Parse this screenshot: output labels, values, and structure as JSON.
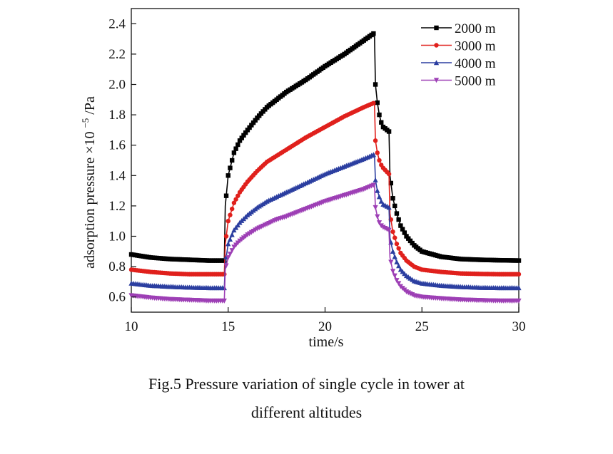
{
  "chart_data": {
    "type": "line",
    "title": "",
    "xlabel": "time/s",
    "ylabel_text": "adsorption pressure",
    "ylabel_mult": "×10",
    "ylabel_exp": "−5",
    "ylabel_unit": "/Pa",
    "xlim": [
      10,
      30
    ],
    "ylim": [
      0.5,
      2.5
    ],
    "xticks": [
      10,
      15,
      20,
      25,
      30
    ],
    "xtick_labels": [
      "10",
      "15",
      "20",
      "25",
      "30"
    ],
    "yticks": [
      0.6,
      0.8,
      1.0,
      1.2,
      1.4,
      1.6,
      1.8,
      2.0,
      2.2,
      2.4
    ],
    "ytick_labels": [
      "0.6",
      "0.8",
      "1.0",
      "1.2",
      "1.4",
      "1.6",
      "1.8",
      "2.0",
      "2.2",
      "2.4"
    ],
    "legend_position": "top-right",
    "series": [
      {
        "name": "2000 m",
        "color": "#000000",
        "marker": "square",
        "x": [
          10,
          11,
          12,
          13,
          14,
          14.8,
          14.85,
          15.0,
          15.3,
          15.6,
          16.0,
          16.5,
          17.0,
          17.5,
          18.0,
          19.0,
          20.0,
          21.0,
          22.0,
          22.55,
          22.6,
          22.7,
          22.8,
          22.9,
          23.0,
          23.3,
          23.35,
          23.5,
          23.7,
          23.9,
          24.2,
          24.6,
          25.0,
          26.0,
          27.0,
          28.0,
          29.0,
          30.0
        ],
        "y": [
          0.88,
          0.86,
          0.85,
          0.845,
          0.84,
          0.84,
          1.2,
          1.4,
          1.55,
          1.63,
          1.7,
          1.78,
          1.85,
          1.9,
          1.95,
          2.03,
          2.12,
          2.2,
          2.29,
          2.34,
          2.0,
          1.88,
          1.8,
          1.75,
          1.72,
          1.69,
          1.4,
          1.25,
          1.15,
          1.07,
          1.0,
          0.94,
          0.9,
          0.865,
          0.85,
          0.845,
          0.842,
          0.84
        ]
      },
      {
        "name": "3000 m",
        "color": "#e0201c",
        "marker": "circle",
        "x": [
          10,
          11,
          12,
          13,
          14,
          14.8,
          14.85,
          15.0,
          15.3,
          15.6,
          16.0,
          16.5,
          17.0,
          17.5,
          18.0,
          19.0,
          20.0,
          21.0,
          22.0,
          22.55,
          22.6,
          22.7,
          22.8,
          22.9,
          23.0,
          23.3,
          23.35,
          23.5,
          23.7,
          23.9,
          24.2,
          24.6,
          25.0,
          26.0,
          27.0,
          28.0,
          29.0,
          30.0
        ],
        "y": [
          0.78,
          0.765,
          0.755,
          0.75,
          0.75,
          0.75,
          0.95,
          1.1,
          1.22,
          1.29,
          1.36,
          1.43,
          1.49,
          1.53,
          1.57,
          1.65,
          1.72,
          1.79,
          1.85,
          1.88,
          1.63,
          1.55,
          1.5,
          1.47,
          1.45,
          1.41,
          1.15,
          1.03,
          0.95,
          0.89,
          0.84,
          0.8,
          0.78,
          0.765,
          0.755,
          0.752,
          0.75,
          0.75
        ]
      },
      {
        "name": "4000 m",
        "color": "#2b3ea0",
        "marker": "triangle-up",
        "x": [
          10,
          11,
          12,
          13,
          14,
          14.8,
          14.85,
          15.0,
          15.3,
          15.6,
          16.0,
          16.5,
          17.0,
          17.5,
          18.0,
          19.0,
          20.0,
          21.0,
          22.0,
          22.55,
          22.6,
          22.7,
          22.8,
          22.9,
          23.0,
          23.3,
          23.35,
          23.5,
          23.7,
          23.9,
          24.2,
          24.6,
          25.0,
          26.0,
          27.0,
          28.0,
          29.0,
          30.0
        ],
        "y": [
          0.69,
          0.675,
          0.668,
          0.663,
          0.66,
          0.66,
          0.82,
          0.95,
          1.04,
          1.09,
          1.14,
          1.19,
          1.23,
          1.26,
          1.29,
          1.35,
          1.41,
          1.46,
          1.51,
          1.54,
          1.37,
          1.3,
          1.26,
          1.23,
          1.21,
          1.19,
          0.99,
          0.9,
          0.83,
          0.78,
          0.74,
          0.705,
          0.69,
          0.675,
          0.667,
          0.662,
          0.66,
          0.66
        ]
      },
      {
        "name": "5000 m",
        "color": "#9d3fb5",
        "marker": "triangle-down",
        "x": [
          10,
          11,
          12,
          13,
          14,
          14.8,
          14.85,
          15.0,
          15.3,
          15.6,
          16.0,
          16.5,
          17.0,
          17.5,
          18.0,
          19.0,
          20.0,
          21.0,
          22.0,
          22.55,
          22.6,
          22.7,
          22.8,
          22.9,
          23.0,
          23.3,
          23.35,
          23.5,
          23.7,
          23.9,
          24.2,
          24.6,
          25.0,
          26.0,
          27.0,
          28.0,
          29.0,
          30.0
        ],
        "y": [
          0.61,
          0.595,
          0.585,
          0.58,
          0.575,
          0.575,
          0.78,
          0.86,
          0.93,
          0.97,
          1.01,
          1.05,
          1.08,
          1.11,
          1.13,
          1.18,
          1.23,
          1.27,
          1.31,
          1.34,
          1.19,
          1.13,
          1.09,
          1.07,
          1.06,
          1.04,
          0.86,
          0.77,
          0.71,
          0.67,
          0.635,
          0.61,
          0.6,
          0.59,
          0.582,
          0.578,
          0.575,
          0.575
        ]
      }
    ]
  },
  "caption": {
    "line1": "Fig.5    Pressure variation of single cycle in tower at",
    "line2": "different altitudes"
  }
}
